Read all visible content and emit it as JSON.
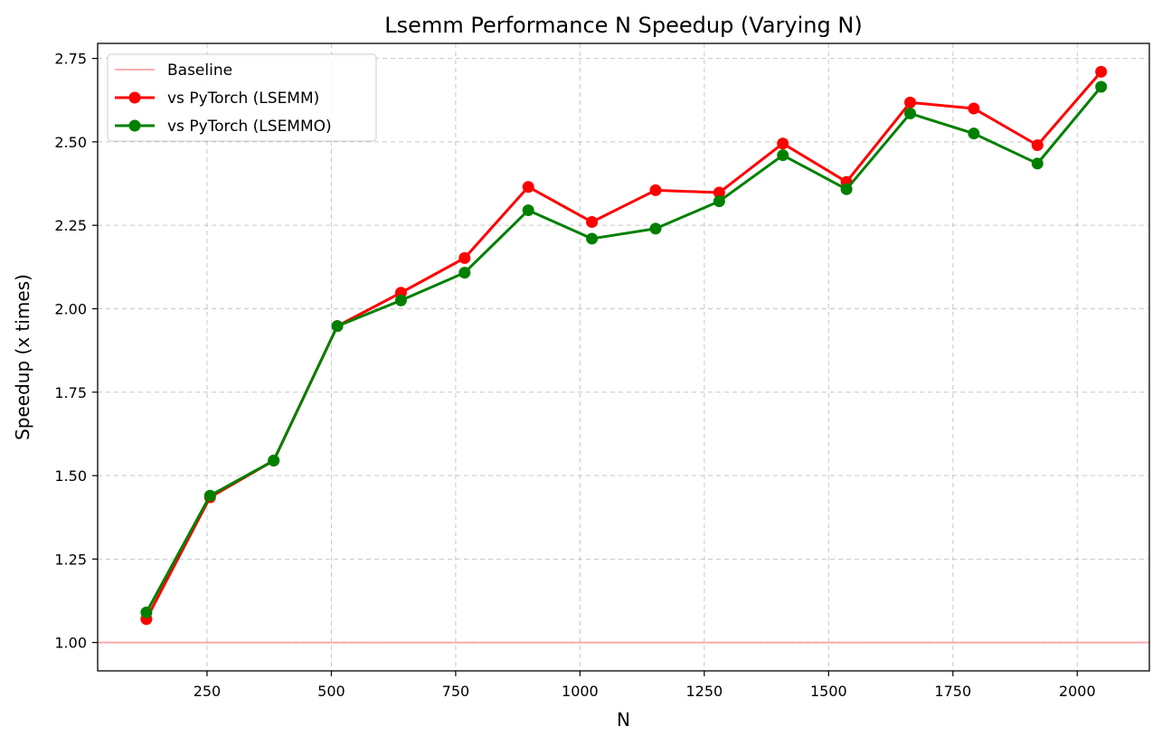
{
  "chart_data": {
    "type": "line",
    "title": "Lsemm Performance N Speedup (Varying N)",
    "xlabel": "N",
    "ylabel": "Speedup (x times)",
    "xlim": [
      30,
      2145
    ],
    "ylim": [
      0.915,
      2.795
    ],
    "xticks": [
      250,
      500,
      750,
      1000,
      1250,
      1500,
      1750,
      2000
    ],
    "yticks": [
      1.0,
      1.25,
      1.5,
      1.75,
      2.0,
      2.25,
      2.5,
      2.75
    ],
    "xtick_labels": [
      "250",
      "500",
      "750",
      "1000",
      "1250",
      "1500",
      "1750",
      "2000"
    ],
    "ytick_labels": [
      "1.00",
      "1.25",
      "1.50",
      "1.75",
      "2.00",
      "2.25",
      "2.50",
      "2.75"
    ],
    "grid": true,
    "legend_position": "top-left",
    "baseline": {
      "name": "Baseline",
      "y": 1.0,
      "color": "#ff9999"
    },
    "x": [
      128,
      256,
      384,
      512,
      640,
      768,
      896,
      1024,
      1152,
      1280,
      1408,
      1536,
      1664,
      1792,
      1920,
      2048
    ],
    "series": [
      {
        "name": "vs PyTorch (LSEMM)",
        "color": "#ff0000",
        "values": [
          1.07,
          1.435,
          1.545,
          1.948,
          2.048,
          2.152,
          2.365,
          2.26,
          2.355,
          2.348,
          2.495,
          2.38,
          2.618,
          2.6,
          2.49,
          2.71
        ]
      },
      {
        "name": "vs PyTorch (LSEMMO)",
        "color": "#008000",
        "values": [
          1.09,
          1.44,
          1.545,
          1.948,
          2.025,
          2.108,
          2.295,
          2.21,
          2.24,
          2.322,
          2.46,
          2.358,
          2.585,
          2.525,
          2.435,
          2.665
        ]
      }
    ]
  }
}
